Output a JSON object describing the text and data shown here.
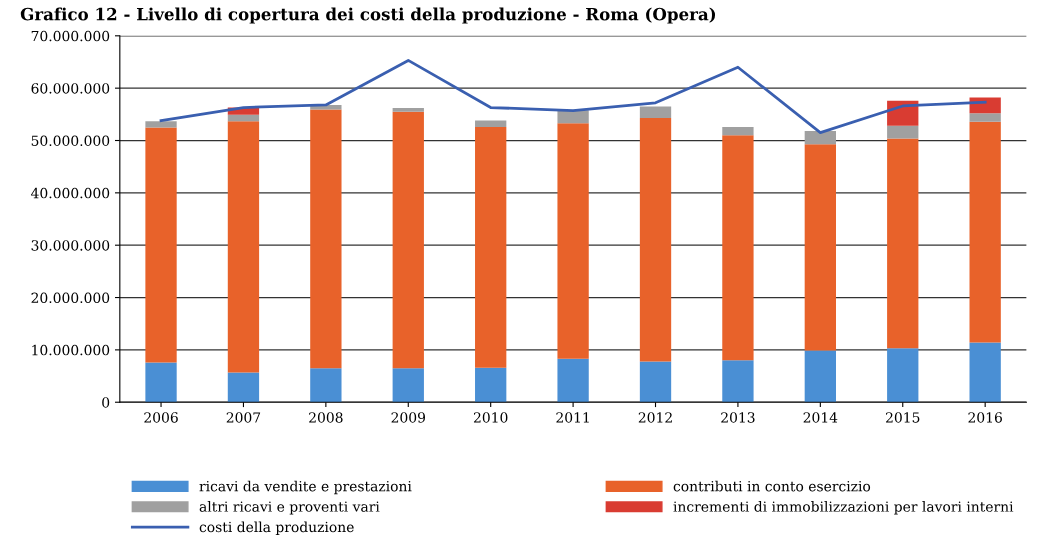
{
  "chart_data": {
    "type": "bar",
    "stacked": true,
    "title": "Grafico 12 - Livello di copertura dei costi della produzione - Roma (Opera)",
    "categories": [
      "2006",
      "2007",
      "2008",
      "2009",
      "2010",
      "2011",
      "2012",
      "2013",
      "2014",
      "2015",
      "2016"
    ],
    "series": [
      {
        "name": "ricavi da vendite e prestazioni",
        "color": "#4a8fd4",
        "values": [
          7600000,
          5700000,
          6500000,
          6500000,
          6600000,
          8300000,
          7800000,
          8000000,
          9900000,
          10300000,
          11400000
        ]
      },
      {
        "name": "contributi in conto esercizio",
        "color": "#e8622a",
        "values": [
          44900000,
          48000000,
          49400000,
          49000000,
          46000000,
          45000000,
          46500000,
          43000000,
          39400000,
          40100000,
          42200000
        ]
      },
      {
        "name": "altri ricavi e proventi vari",
        "color": "#a0a0a0",
        "values": [
          1200000,
          1200000,
          900000,
          700000,
          1200000,
          2500000,
          2200000,
          1600000,
          2500000,
          2400000,
          1600000
        ]
      },
      {
        "name": "incrementi di immobilizzazioni per lavori interni",
        "color": "#d93c32",
        "values": [
          0,
          1400000,
          0,
          0,
          0,
          0,
          0,
          0,
          0,
          4800000,
          3000000
        ]
      },
      {
        "name": "costi della produzione",
        "type": "line",
        "color": "#3a5fb0",
        "values": [
          53800000,
          56300000,
          56800000,
          65300000,
          56300000,
          55700000,
          57200000,
          64000000,
          51500000,
          56600000,
          57300000
        ]
      }
    ],
    "ylim": [
      0,
      70000000
    ],
    "yticks": [
      {
        "value": 0,
        "label": "0"
      },
      {
        "value": 10000000,
        "label": "10.000.000"
      },
      {
        "value": 20000000,
        "label": "20.000.000"
      },
      {
        "value": 30000000,
        "label": "30.000.000"
      },
      {
        "value": 40000000,
        "label": "40.000.000"
      },
      {
        "value": 50000000,
        "label": "50.000.000"
      },
      {
        "value": 60000000,
        "label": "60.000.000"
      },
      {
        "value": 70000000,
        "label": "70.000.000"
      }
    ],
    "grid": "y",
    "legend": "bottom",
    "marker": "none",
    "line_style": "solid"
  }
}
